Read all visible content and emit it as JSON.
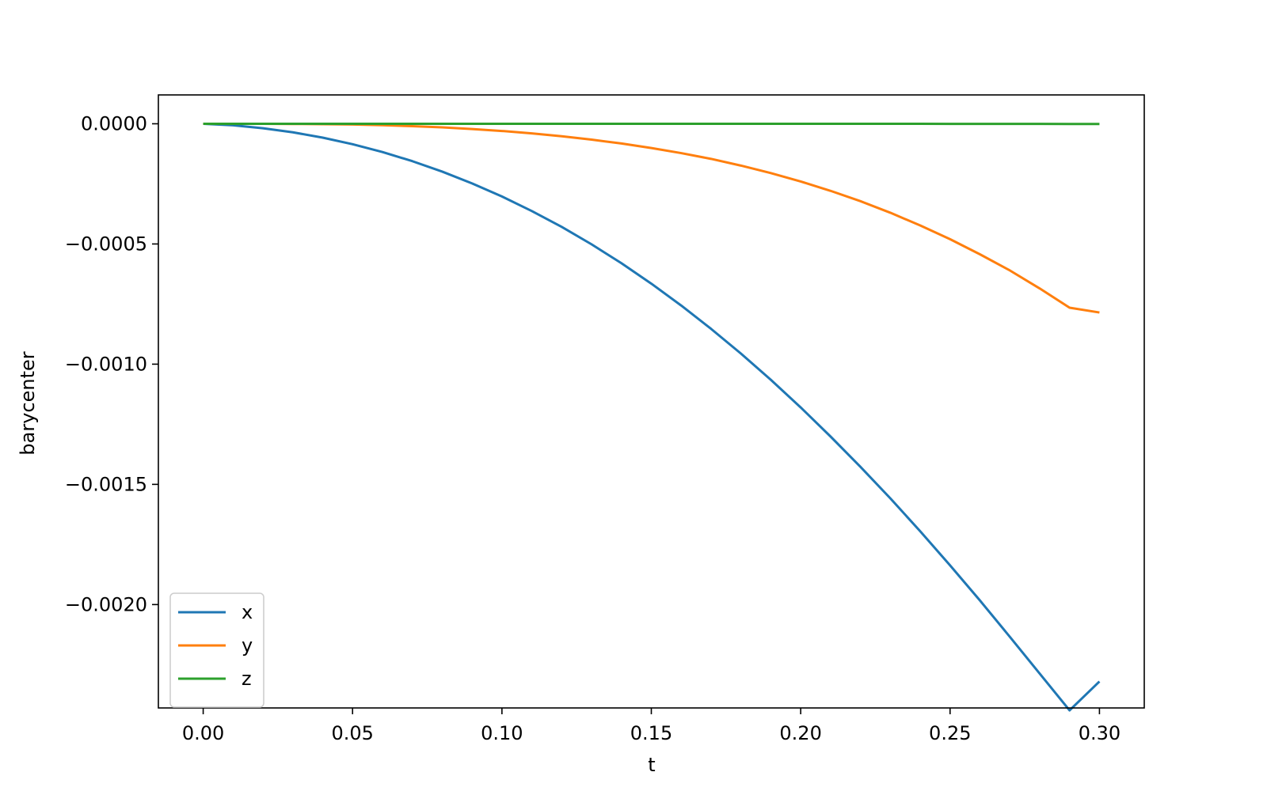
{
  "chart_data": {
    "type": "line",
    "title": "",
    "xlabel": "t",
    "ylabel": "barycenter",
    "xlim": [
      -0.015,
      0.315
    ],
    "ylim": [
      -0.00243,
      0.00012
    ],
    "x_ticks": [
      0.0,
      0.05,
      0.1,
      0.15,
      0.2,
      0.25,
      0.3
    ],
    "x_tick_labels": [
      "0.00",
      "0.05",
      "0.10",
      "0.15",
      "0.20",
      "0.25",
      "0.30"
    ],
    "y_ticks": [
      0.0,
      -0.0005,
      -0.001,
      -0.0015,
      -0.002
    ],
    "y_tick_labels": [
      "0.0000",
      "−0.0005",
      "−0.0010",
      "−0.0015",
      "−0.0020"
    ],
    "grid": false,
    "legend_position": "lower-left",
    "x": [
      0.0,
      0.01,
      0.02,
      0.03,
      0.04,
      0.05,
      0.06,
      0.07,
      0.08,
      0.09,
      0.1,
      0.11,
      0.12,
      0.13,
      0.14,
      0.15,
      0.16,
      0.17,
      0.18,
      0.19,
      0.2,
      0.21,
      0.22,
      0.23,
      0.24,
      0.25,
      0.26,
      0.27,
      0.28,
      0.29,
      0.3
    ],
    "series": [
      {
        "name": "x",
        "color": "#1f77b4",
        "values": [
          0.0,
          -6.3e-06,
          -1.85e-05,
          -3.55e-05,
          -5.77e-05,
          -8.5e-05,
          -0.0001175,
          -0.0001555,
          -0.000199,
          -0.000248,
          -0.0003025,
          -0.000363,
          -0.000429,
          -0.0005015,
          -0.00058,
          -0.000665,
          -0.000756,
          -0.000853,
          -0.000956,
          -0.001065,
          -0.00118,
          -0.001301,
          -0.001427,
          -0.001558,
          -0.001695,
          -0.001837,
          -0.001983,
          -0.002134,
          -0.002287,
          -0.00244,
          -0.00232
        ]
      },
      {
        "name": "y",
        "color": "#ff7f0e",
        "values": [
          0.0,
          -1e-07,
          -3e-07,
          -8e-07,
          -1.8e-06,
          -3e-06,
          -6e-06,
          -1e-05,
          -1.5e-05,
          -2.2e-05,
          -3e-05,
          -4e-05,
          -5.2e-05,
          -6.6e-05,
          -8.2e-05,
          -0.000101,
          -0.000122,
          -0.000146,
          -0.000174,
          -0.000205,
          -0.00024,
          -0.000279,
          -0.000322,
          -0.00037,
          -0.000423,
          -0.00048,
          -0.000543,
          -0.00061,
          -0.000685,
          -0.000765,
          -0.000785
        ]
      },
      {
        "name": "z",
        "color": "#2ca02c",
        "values": [
          0.0,
          0.0,
          0.0,
          0.0,
          0.0,
          0.0,
          0.0,
          0.0,
          0.0,
          0.0,
          0.0,
          0.0,
          0.0,
          0.0,
          0.0,
          0.0,
          0.0,
          0.0,
          0.0,
          0.0,
          0.0,
          0.0,
          -1e-07,
          -2e-07,
          -3e-07,
          -4e-07,
          -5e-07,
          -6e-07,
          -7e-07,
          -8e-07,
          -1e-06
        ]
      }
    ]
  }
}
